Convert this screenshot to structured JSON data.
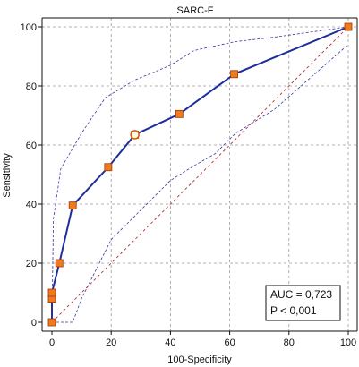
{
  "chart_data": {
    "type": "line",
    "title": "SARC-F",
    "xlabel": "100-Specificity",
    "ylabel": "Sensitivity",
    "xlim": [
      0,
      100
    ],
    "ylim": [
      0,
      100
    ],
    "xticks": [
      0,
      20,
      40,
      60,
      80,
      100
    ],
    "yticks": [
      0,
      20,
      40,
      60,
      80,
      100
    ],
    "grid": true,
    "series": [
      {
        "role": "roc",
        "color": "#1f2f9a",
        "x": [
          0,
          0,
          0,
          2.5,
          7,
          19,
          28,
          43,
          61.5,
          100
        ],
        "y": [
          0,
          8,
          10,
          20,
          39.5,
          52.5,
          63.5,
          70.5,
          84,
          100
        ]
      },
      {
        "role": "ci-upper",
        "color": "#3a3aa0",
        "x": [
          0,
          0.5,
          3,
          10,
          18,
          28,
          40,
          48,
          55,
          62,
          75,
          100
        ],
        "y": [
          0,
          35,
          52,
          64,
          76,
          82,
          87,
          92,
          93.5,
          95,
          96.5,
          100
        ]
      },
      {
        "role": "ci-lower",
        "color": "#3a3aa0",
        "x": [
          0,
          7,
          10,
          20,
          30,
          40,
          48,
          55,
          62,
          75,
          100
        ],
        "y": [
          0,
          0,
          8,
          28,
          38,
          48,
          53,
          57,
          64,
          72,
          94
        ]
      },
      {
        "role": "reference",
        "color": "#b03030",
        "x": [
          0,
          100
        ],
        "y": [
          0,
          100
        ]
      }
    ],
    "optimal_point": {
      "x": 28,
      "y": 63.5
    },
    "annotations": [
      "AUC = 0,723",
      "P < 0,001"
    ],
    "annotation_position": "bottom-right"
  }
}
